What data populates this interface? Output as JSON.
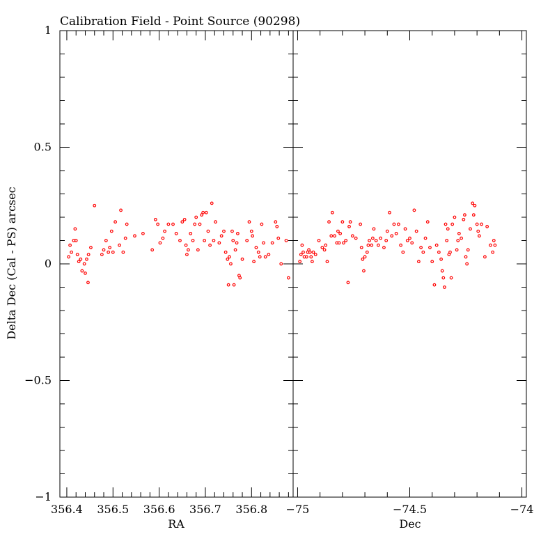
{
  "chart_data": {
    "type": "scatter",
    "title": "Calibration Field - Point Source (90298)",
    "ylabel": "Delta Dec (Cal - PS) arcsec",
    "ylim": [
      -1,
      1
    ],
    "yticks": [
      {
        "value": 1,
        "label": "1"
      },
      {
        "value": 0.5,
        "label": "0.5"
      },
      {
        "value": 0,
        "label": "0"
      },
      {
        "value": -0.5,
        "label": "−0.5"
      },
      {
        "value": -1,
        "label": "−1"
      }
    ],
    "marker_color": "#ff0000",
    "panels": [
      {
        "id": "ra",
        "xlabel": "RA",
        "xlim": [
          356.385,
          356.89
        ],
        "xticks": [
          {
            "value": 356.4,
            "label": "356.4"
          },
          {
            "value": 356.5,
            "label": "356.5"
          },
          {
            "value": 356.6,
            "label": "356.6"
          },
          {
            "value": 356.7,
            "label": "356.7"
          },
          {
            "value": 356.8,
            "label": "356.8"
          }
        ],
        "xminor_step": 0.02,
        "points": [
          [
            356.404,
            0.03
          ],
          [
            356.407,
            0.08
          ],
          [
            356.41,
            0.05
          ],
          [
            356.415,
            0.1
          ],
          [
            356.418,
            0.15
          ],
          [
            356.42,
            0.1
          ],
          [
            356.423,
            0.04
          ],
          [
            356.426,
            0.01
          ],
          [
            356.43,
            0.02
          ],
          [
            356.433,
            -0.03
          ],
          [
            356.438,
            0.0
          ],
          [
            356.44,
            -0.04
          ],
          [
            356.443,
            0.02
          ],
          [
            356.447,
            0.04
          ],
          [
            356.452,
            0.07
          ],
          [
            356.446,
            -0.08
          ],
          [
            356.46,
            0.25
          ],
          [
            356.476,
            0.04
          ],
          [
            356.48,
            0.06
          ],
          [
            356.485,
            0.1
          ],
          [
            356.49,
            0.05
          ],
          [
            356.493,
            0.07
          ],
          [
            356.497,
            0.14
          ],
          [
            356.5,
            0.05
          ],
          [
            356.505,
            0.18
          ],
          [
            356.514,
            0.08
          ],
          [
            356.517,
            0.23
          ],
          [
            356.522,
            0.05
          ],
          [
            356.527,
            0.11
          ],
          [
            356.53,
            0.17
          ],
          [
            356.547,
            0.12
          ],
          [
            356.565,
            0.13
          ],
          [
            356.585,
            0.06
          ],
          [
            356.592,
            0.19
          ],
          [
            356.597,
            0.17
          ],
          [
            356.602,
            0.09
          ],
          [
            356.608,
            0.11
          ],
          [
            356.612,
            0.14
          ],
          [
            356.62,
            0.17
          ],
          [
            356.63,
            0.17
          ],
          [
            356.637,
            0.13
          ],
          [
            356.645,
            0.1
          ],
          [
            356.65,
            0.18
          ],
          [
            356.655,
            0.19
          ],
          [
            356.658,
            0.08
          ],
          [
            356.66,
            0.04
          ],
          [
            356.663,
            0.06
          ],
          [
            356.668,
            0.13
          ],
          [
            356.673,
            0.1
          ],
          [
            356.677,
            0.17
          ],
          [
            356.68,
            0.2
          ],
          [
            356.684,
            0.06
          ],
          [
            356.688,
            0.17
          ],
          [
            356.692,
            0.21
          ],
          [
            356.695,
            0.22
          ],
          [
            356.698,
            0.1
          ],
          [
            356.702,
            0.22
          ],
          [
            356.706,
            0.14
          ],
          [
            356.71,
            0.08
          ],
          [
            356.714,
            0.26
          ],
          [
            356.718,
            0.1
          ],
          [
            356.722,
            0.18
          ],
          [
            356.73,
            0.09
          ],
          [
            356.735,
            0.12
          ],
          [
            356.74,
            0.14
          ],
          [
            356.744,
            0.05
          ],
          [
            356.748,
            0.02
          ],
          [
            356.75,
            -0.09
          ],
          [
            356.752,
            0.03
          ],
          [
            356.755,
            0.0
          ],
          [
            356.758,
            0.14
          ],
          [
            356.76,
            0.1
          ],
          [
            356.762,
            -0.09
          ],
          [
            356.765,
            0.06
          ],
          [
            356.768,
            0.09
          ],
          [
            356.77,
            0.13
          ],
          [
            356.773,
            -0.05
          ],
          [
            356.775,
            -0.06
          ],
          [
            356.78,
            0.02
          ],
          [
            356.79,
            0.1
          ],
          [
            356.795,
            0.18
          ],
          [
            356.8,
            0.14
          ],
          [
            356.802,
            0.12
          ],
          [
            356.805,
            0.01
          ],
          [
            356.81,
            0.07
          ],
          [
            356.815,
            0.05
          ],
          [
            356.818,
            0.03
          ],
          [
            356.822,
            0.17
          ],
          [
            356.826,
            0.09
          ],
          [
            356.83,
            0.03
          ],
          [
            356.837,
            0.04
          ],
          [
            356.845,
            0.09
          ],
          [
            356.852,
            0.18
          ],
          [
            356.855,
            0.16
          ],
          [
            356.858,
            0.11
          ],
          [
            356.864,
            0.0
          ],
          [
            356.875,
            0.1
          ],
          [
            356.88,
            -0.06
          ]
        ]
      },
      {
        "id": "dec",
        "xlabel": "Dec",
        "xlim": [
          -75.02,
          -73.98
        ],
        "xticks": [
          {
            "value": -75,
            "label": "−75"
          },
          {
            "value": -74.5,
            "label": "−74.5"
          },
          {
            "value": -74,
            "label": "−74"
          }
        ],
        "xminor_step": 0.1,
        "points": [
          [
            -74.99,
            0.01
          ],
          [
            -74.985,
            0.04
          ],
          [
            -74.98,
            0.08
          ],
          [
            -74.975,
            0.05
          ],
          [
            -74.97,
            0.03
          ],
          [
            -74.96,
            0.03
          ],
          [
            -74.955,
            0.05
          ],
          [
            -74.95,
            0.06
          ],
          [
            -74.945,
            0.05
          ],
          [
            -74.94,
            0.03
          ],
          [
            -74.935,
            0.01
          ],
          [
            -74.93,
            0.05
          ],
          [
            -74.92,
            0.04
          ],
          [
            -74.905,
            0.1
          ],
          [
            -74.89,
            0.07
          ],
          [
            -74.88,
            0.06
          ],
          [
            -74.875,
            0.08
          ],
          [
            -74.868,
            0.01
          ],
          [
            -74.86,
            0.18
          ],
          [
            -74.85,
            0.12
          ],
          [
            -74.845,
            0.22
          ],
          [
            -74.835,
            0.12
          ],
          [
            -74.825,
            0.09
          ],
          [
            -74.82,
            0.14
          ],
          [
            -74.815,
            0.09
          ],
          [
            -74.81,
            0.13
          ],
          [
            -74.8,
            0.18
          ],
          [
            -74.795,
            0.09
          ],
          [
            -74.785,
            0.1
          ],
          [
            -74.775,
            -0.08
          ],
          [
            -74.77,
            0.16
          ],
          [
            -74.765,
            0.18
          ],
          [
            -74.755,
            0.12
          ],
          [
            -74.74,
            0.11
          ],
          [
            -74.72,
            0.17
          ],
          [
            -74.715,
            0.07
          ],
          [
            -74.71,
            0.02
          ],
          [
            -74.705,
            -0.03
          ],
          [
            -74.7,
            0.03
          ],
          [
            -74.69,
            0.05
          ],
          [
            -74.685,
            0.08
          ],
          [
            -74.68,
            0.1
          ],
          [
            -74.67,
            0.08
          ],
          [
            -74.665,
            0.11
          ],
          [
            -74.66,
            0.15
          ],
          [
            -74.65,
            0.1
          ],
          [
            -74.64,
            0.08
          ],
          [
            -74.63,
            0.11
          ],
          [
            -74.615,
            0.07
          ],
          [
            -74.605,
            0.1
          ],
          [
            -74.6,
            0.14
          ],
          [
            -74.59,
            0.22
          ],
          [
            -74.58,
            0.12
          ],
          [
            -74.57,
            0.17
          ],
          [
            -74.56,
            0.13
          ],
          [
            -74.55,
            0.17
          ],
          [
            -74.54,
            0.08
          ],
          [
            -74.53,
            0.05
          ],
          [
            -74.52,
            0.15
          ],
          [
            -74.51,
            0.1
          ],
          [
            -74.5,
            0.11
          ],
          [
            -74.49,
            0.09
          ],
          [
            -74.48,
            0.23
          ],
          [
            -74.47,
            0.14
          ],
          [
            -74.46,
            0.01
          ],
          [
            -74.45,
            0.07
          ],
          [
            -74.44,
            0.05
          ],
          [
            -74.43,
            0.11
          ],
          [
            -74.42,
            0.18
          ],
          [
            -74.41,
            0.07
          ],
          [
            -74.4,
            0.01
          ],
          [
            -74.39,
            -0.09
          ],
          [
            -74.38,
            0.08
          ],
          [
            -74.37,
            0.05
          ],
          [
            -74.36,
            0.02
          ],
          [
            -74.355,
            -0.03
          ],
          [
            -74.35,
            -0.06
          ],
          [
            -74.345,
            -0.1
          ],
          [
            -74.34,
            0.17
          ],
          [
            -74.335,
            0.1
          ],
          [
            -74.33,
            0.15
          ],
          [
            -74.325,
            0.04
          ],
          [
            -74.32,
            0.05
          ],
          [
            -74.315,
            -0.06
          ],
          [
            -74.31,
            0.17
          ],
          [
            -74.3,
            0.2
          ],
          [
            -74.29,
            0.06
          ],
          [
            -74.285,
            0.1
          ],
          [
            -74.28,
            0.13
          ],
          [
            -74.27,
            0.11
          ],
          [
            -74.26,
            0.19
          ],
          [
            -74.255,
            0.21
          ],
          [
            -74.25,
            0.03
          ],
          [
            -74.245,
            0.0
          ],
          [
            -74.24,
            0.06
          ],
          [
            -74.23,
            0.15
          ],
          [
            -74.22,
            0.26
          ],
          [
            -74.215,
            0.21
          ],
          [
            -74.21,
            0.25
          ],
          [
            -74.2,
            0.17
          ],
          [
            -74.195,
            0.14
          ],
          [
            -74.19,
            0.12
          ],
          [
            -74.18,
            0.17
          ],
          [
            -74.165,
            0.03
          ],
          [
            -74.155,
            0.16
          ],
          [
            -74.14,
            0.08
          ],
          [
            -74.13,
            0.05
          ],
          [
            -74.125,
            0.1
          ],
          [
            -74.12,
            0.08
          ]
        ]
      }
    ]
  }
}
